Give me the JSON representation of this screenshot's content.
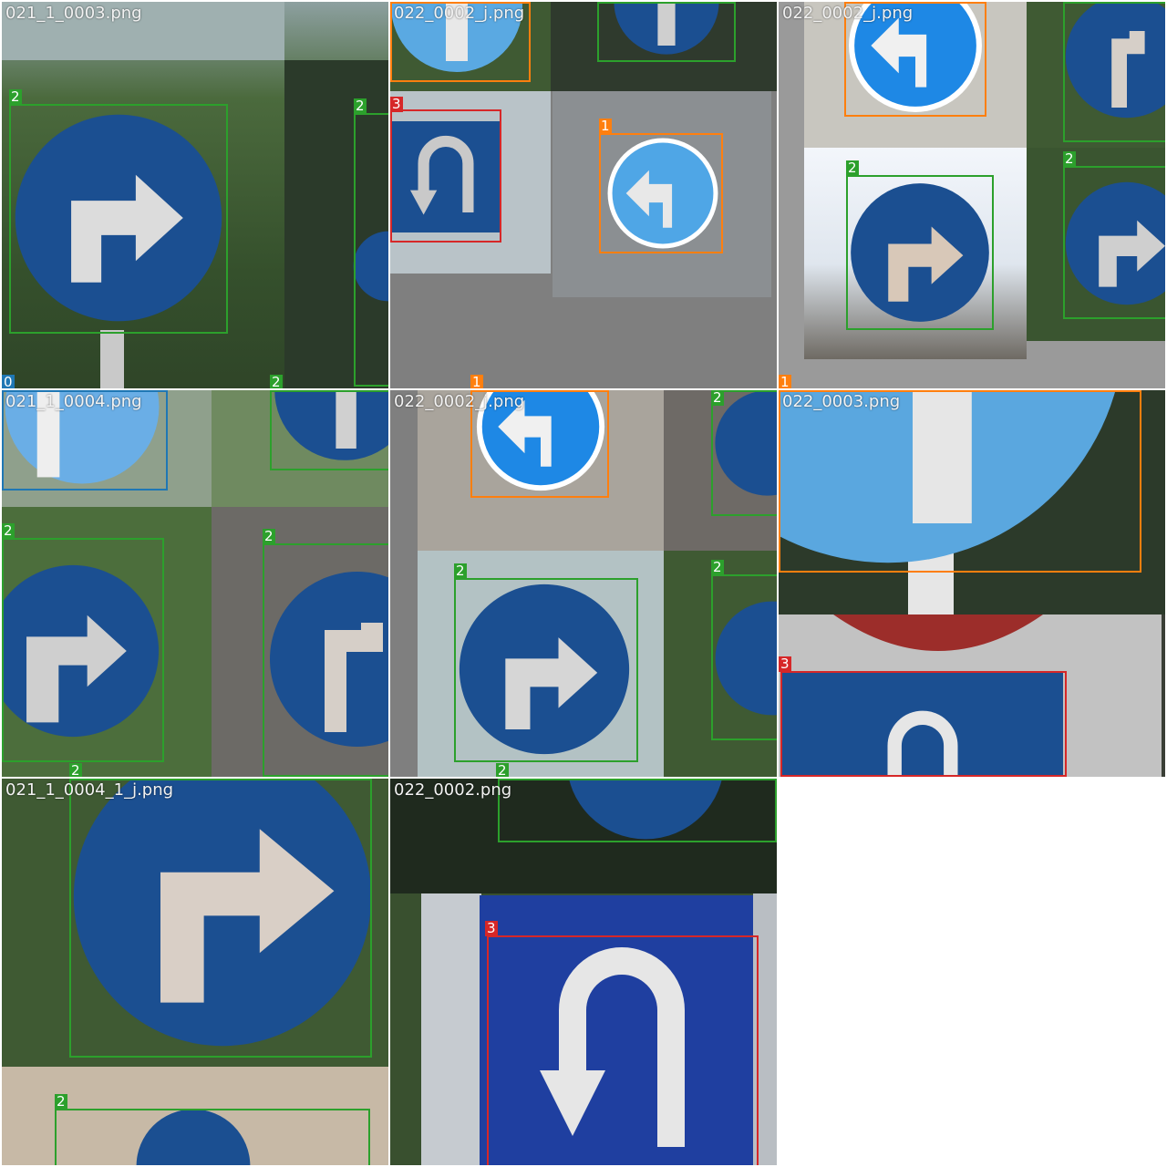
{
  "colors": {
    "class_0": "#1f77b4",
    "class_1": "#ff7f0e",
    "class_2": "#2ca02c",
    "class_3": "#d62728",
    "sign_dark_blue": "#1b4f91",
    "sign_light_blue": "#3d9be0",
    "sign_white": "#e6e6e6",
    "foliage": "#3f5a33",
    "gray_pad": "#7f7f7f"
  },
  "tiles": [
    {
      "title": "021_1_0003.png",
      "labels": [
        "0",
        "2",
        "2",
        "2"
      ]
    },
    {
      "title": "022_0002_j.png",
      "labels": [
        "3",
        "1",
        "1"
      ]
    },
    {
      "title": "022_0002_j.png",
      "labels": [
        "2",
        "2",
        "1"
      ]
    },
    {
      "title": "021_1_0004.png",
      "labels": [
        "2",
        "2",
        "2"
      ]
    },
    {
      "title": "022_0002_j.png",
      "labels": [
        "2",
        "2",
        "2",
        "2"
      ]
    },
    {
      "title": "022_0003.png",
      "labels": [
        "3"
      ]
    },
    {
      "title": "021_1_0004_1_j.png",
      "labels": [
        "2"
      ]
    },
    {
      "title": "022_0002.png",
      "labels": [
        "3"
      ]
    }
  ]
}
